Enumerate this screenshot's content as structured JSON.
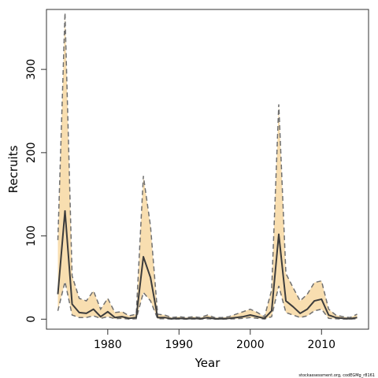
{
  "chart_data": {
    "type": "area",
    "title": "",
    "xlabel": "Year",
    "ylabel": "Recruits",
    "xlim": [
      1971.4,
      2016.6
    ],
    "ylim": [
      -12,
      372
    ],
    "xticks": [
      1980,
      1990,
      2000,
      2010
    ],
    "yticks": [
      0,
      100,
      200,
      300
    ],
    "grid": false,
    "legend": "none",
    "footnote": "stockassessment.org, codEGMg_r8161",
    "colors": {
      "band": "#F8DEB0",
      "estimate": "#3C3C3C",
      "bounds": "#707070",
      "frame": "#333333"
    },
    "series": [
      {
        "name": "estimate",
        "x": [
          1973,
          1974,
          1975,
          1976,
          1977,
          1978,
          1979,
          1980,
          1981,
          1982,
          1983,
          1984,
          1985,
          1986,
          1987,
          1988,
          1989,
          1990,
          1991,
          1992,
          1993,
          1994,
          1995,
          1996,
          1997,
          1998,
          1999,
          2000,
          2001,
          2002,
          2003,
          2004,
          2005,
          2006,
          2007,
          2008,
          2009,
          2010,
          2011,
          2012,
          2013,
          2014,
          2015
        ],
        "y": [
          30,
          130,
          18,
          8,
          7,
          12,
          3,
          9,
          2,
          3,
          1,
          2,
          75,
          50,
          2,
          2,
          0.5,
          1,
          0.5,
          1,
          0.5,
          2,
          0.5,
          0.5,
          1,
          2,
          3,
          5,
          3,
          1,
          10,
          102,
          22,
          15,
          7,
          12,
          22,
          24,
          5,
          2,
          1,
          0.5,
          2
        ]
      },
      {
        "name": "upper",
        "x": [
          1973,
          1974,
          1975,
          1976,
          1977,
          1978,
          1979,
          1980,
          1981,
          1982,
          1983,
          1984,
          1985,
          1986,
          1987,
          1988,
          1989,
          1990,
          1991,
          1992,
          1993,
          1994,
          1995,
          1996,
          1997,
          1998,
          1999,
          2000,
          2001,
          2002,
          2003,
          2004,
          2005,
          2006,
          2007,
          2008,
          2009,
          2010,
          2011,
          2012,
          2013,
          2014,
          2015
        ],
        "y": [
          95,
          368,
          52,
          25,
          22,
          34,
          12,
          25,
          8,
          9,
          4,
          6,
          172,
          112,
          6,
          5,
          2,
          3,
          2,
          3,
          2,
          5,
          2,
          2,
          3,
          6,
          9,
          12,
          8,
          3,
          35,
          258,
          55,
          38,
          22,
          30,
          44,
          46,
          12,
          5,
          3,
          2,
          6
        ]
      },
      {
        "name": "lower",
        "x": [
          1973,
          1974,
          1975,
          1976,
          1977,
          1978,
          1979,
          1980,
          1981,
          1982,
          1983,
          1984,
          1985,
          1986,
          1987,
          1988,
          1989,
          1990,
          1991,
          1992,
          1993,
          1994,
          1995,
          1996,
          1997,
          1998,
          1999,
          2000,
          2001,
          2002,
          2003,
          2004,
          2005,
          2006,
          2007,
          2008,
          2009,
          2010,
          2011,
          2012,
          2013,
          2014,
          2015
        ],
        "y": [
          10,
          45,
          5,
          2,
          2,
          4,
          1,
          3,
          0.5,
          1,
          0.2,
          0.5,
          32,
          22,
          0.5,
          0.5,
          0.1,
          0.2,
          0.1,
          0.2,
          0.1,
          0.5,
          0.1,
          0.1,
          0.2,
          0.5,
          1,
          2,
          1,
          0.2,
          3,
          40,
          8,
          5,
          2,
          4,
          10,
          12,
          1,
          0.5,
          0.2,
          0.1,
          0.5
        ]
      }
    ]
  }
}
